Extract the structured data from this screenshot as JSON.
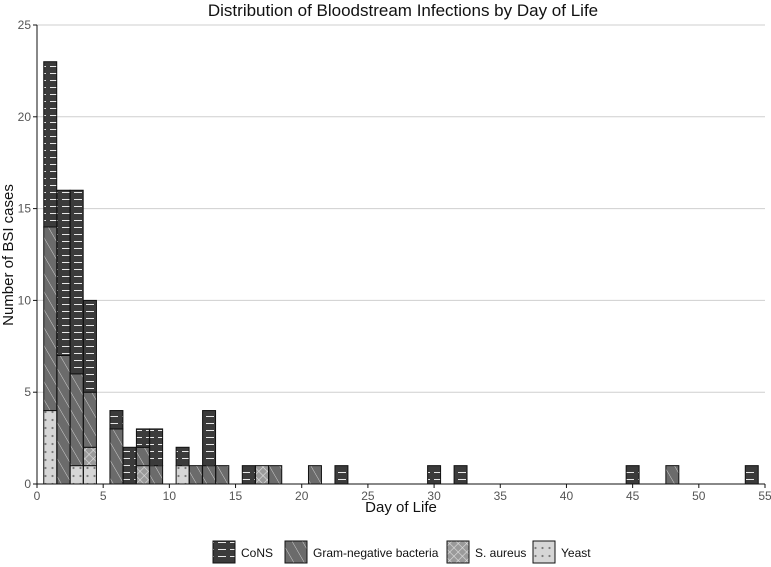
{
  "chart_data": {
    "type": "bar",
    "stacked": true,
    "title": "Distribution of Bloodstream Infections by Day of Life",
    "xlabel": "Day of Life",
    "ylabel": "Number of BSI cases",
    "xlim": [
      0,
      55
    ],
    "ylim": [
      0,
      25
    ],
    "x_ticks": [
      "0",
      "5",
      "10",
      "15",
      "20",
      "25",
      "30",
      "35",
      "40",
      "45",
      "50",
      "55"
    ],
    "y_ticks": [
      "0",
      "5",
      "10",
      "15",
      "20",
      "25"
    ],
    "grid": "horizontal major lines",
    "legend_position": "bottom",
    "x": [
      1,
      2,
      3,
      4,
      6,
      7,
      8,
      9,
      11,
      12,
      13,
      14,
      16,
      17,
      18,
      21,
      23,
      30,
      32,
      45,
      48,
      54
    ],
    "series": [
      {
        "name": "CoNS",
        "pattern": "horizontal-lines",
        "color": "#3b3b3b",
        "values": [
          9,
          9,
          10,
          5,
          1,
          2,
          1,
          2,
          1,
          0,
          3,
          0,
          1,
          0,
          0,
          0,
          1,
          1,
          1,
          1,
          0,
          1
        ]
      },
      {
        "name": "Gram-negative bacteria",
        "pattern": "diagonal-lines",
        "color": "#6b6b6b",
        "values": [
          10,
          7,
          5,
          3,
          3,
          0,
          1,
          1,
          0,
          1,
          1,
          1,
          0,
          0,
          1,
          1,
          0,
          0,
          0,
          0,
          1,
          0
        ]
      },
      {
        "name": "S. aureus",
        "pattern": "crosshatch",
        "color": "#9a9a9a",
        "values": [
          0,
          0,
          0,
          1,
          0,
          0,
          1,
          0,
          0,
          0,
          0,
          0,
          0,
          1,
          0,
          0,
          0,
          0,
          0,
          0,
          0,
          0
        ]
      },
      {
        "name": "Yeast",
        "pattern": "dots",
        "color": "#d6d6d6",
        "values": [
          4,
          0,
          1,
          1,
          0,
          0,
          0,
          0,
          1,
          0,
          0,
          0,
          0,
          0,
          0,
          0,
          0,
          0,
          0,
          0,
          0,
          0
        ]
      }
    ]
  }
}
